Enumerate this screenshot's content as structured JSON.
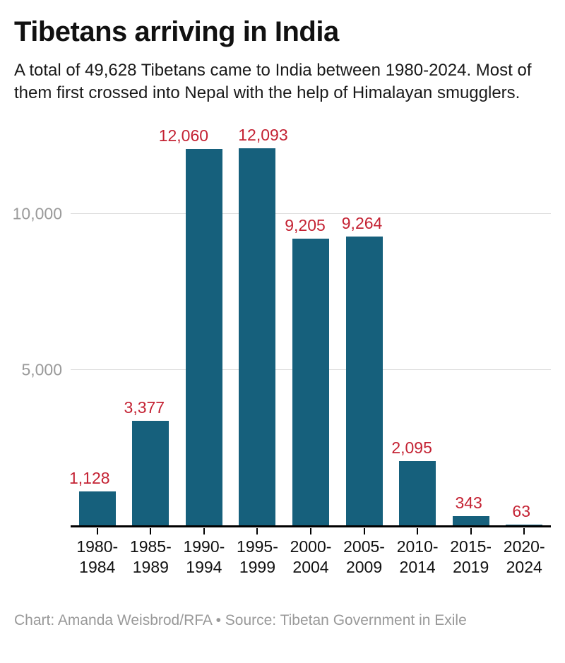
{
  "chart_data": {
    "type": "bar",
    "title": "Tibetans arriving in India",
    "subtitle": "A total of 49,628 Tibetans came to India between 1980-2024. Most of them first crossed into Nepal with the help of Himalayan smugglers.",
    "credit": "Chart: Amanda Weisbrod/RFA • Source: Tibetan Government in Exile",
    "categories": [
      "1980-\n1984",
      "1985-\n1989",
      "1990-\n1994",
      "1995-\n1999",
      "2000-\n2004",
      "2005-\n2009",
      "2010-\n2014",
      "2015-\n2019",
      "2020-\n2024"
    ],
    "values": [
      1128,
      3377,
      12060,
      12093,
      9205,
      9264,
      2095,
      343,
      63
    ],
    "value_labels": [
      "1,128",
      "3,377",
      "12,060",
      "12,093",
      "9,205",
      "9,264",
      "2,095",
      "343",
      "63"
    ],
    "total_shown_in_subtitle": 49628,
    "xlabel": "",
    "ylabel": "",
    "ylim": [
      0,
      12093
    ],
    "y_ticks": [
      5000,
      10000
    ],
    "y_tick_labels": [
      "5,000",
      "10,000"
    ],
    "grid": "horizontal-only",
    "legend": "none",
    "colors": {
      "bar": "#16607c",
      "value_label": "#c42233",
      "axis_tick_text": "#9a9a9a",
      "gridline": "#dddddd",
      "axis_line": "#000000"
    },
    "value_label_dx": [
      -11,
      -9,
      -29,
      8,
      -8,
      -3,
      -8,
      -3,
      -4
    ]
  }
}
